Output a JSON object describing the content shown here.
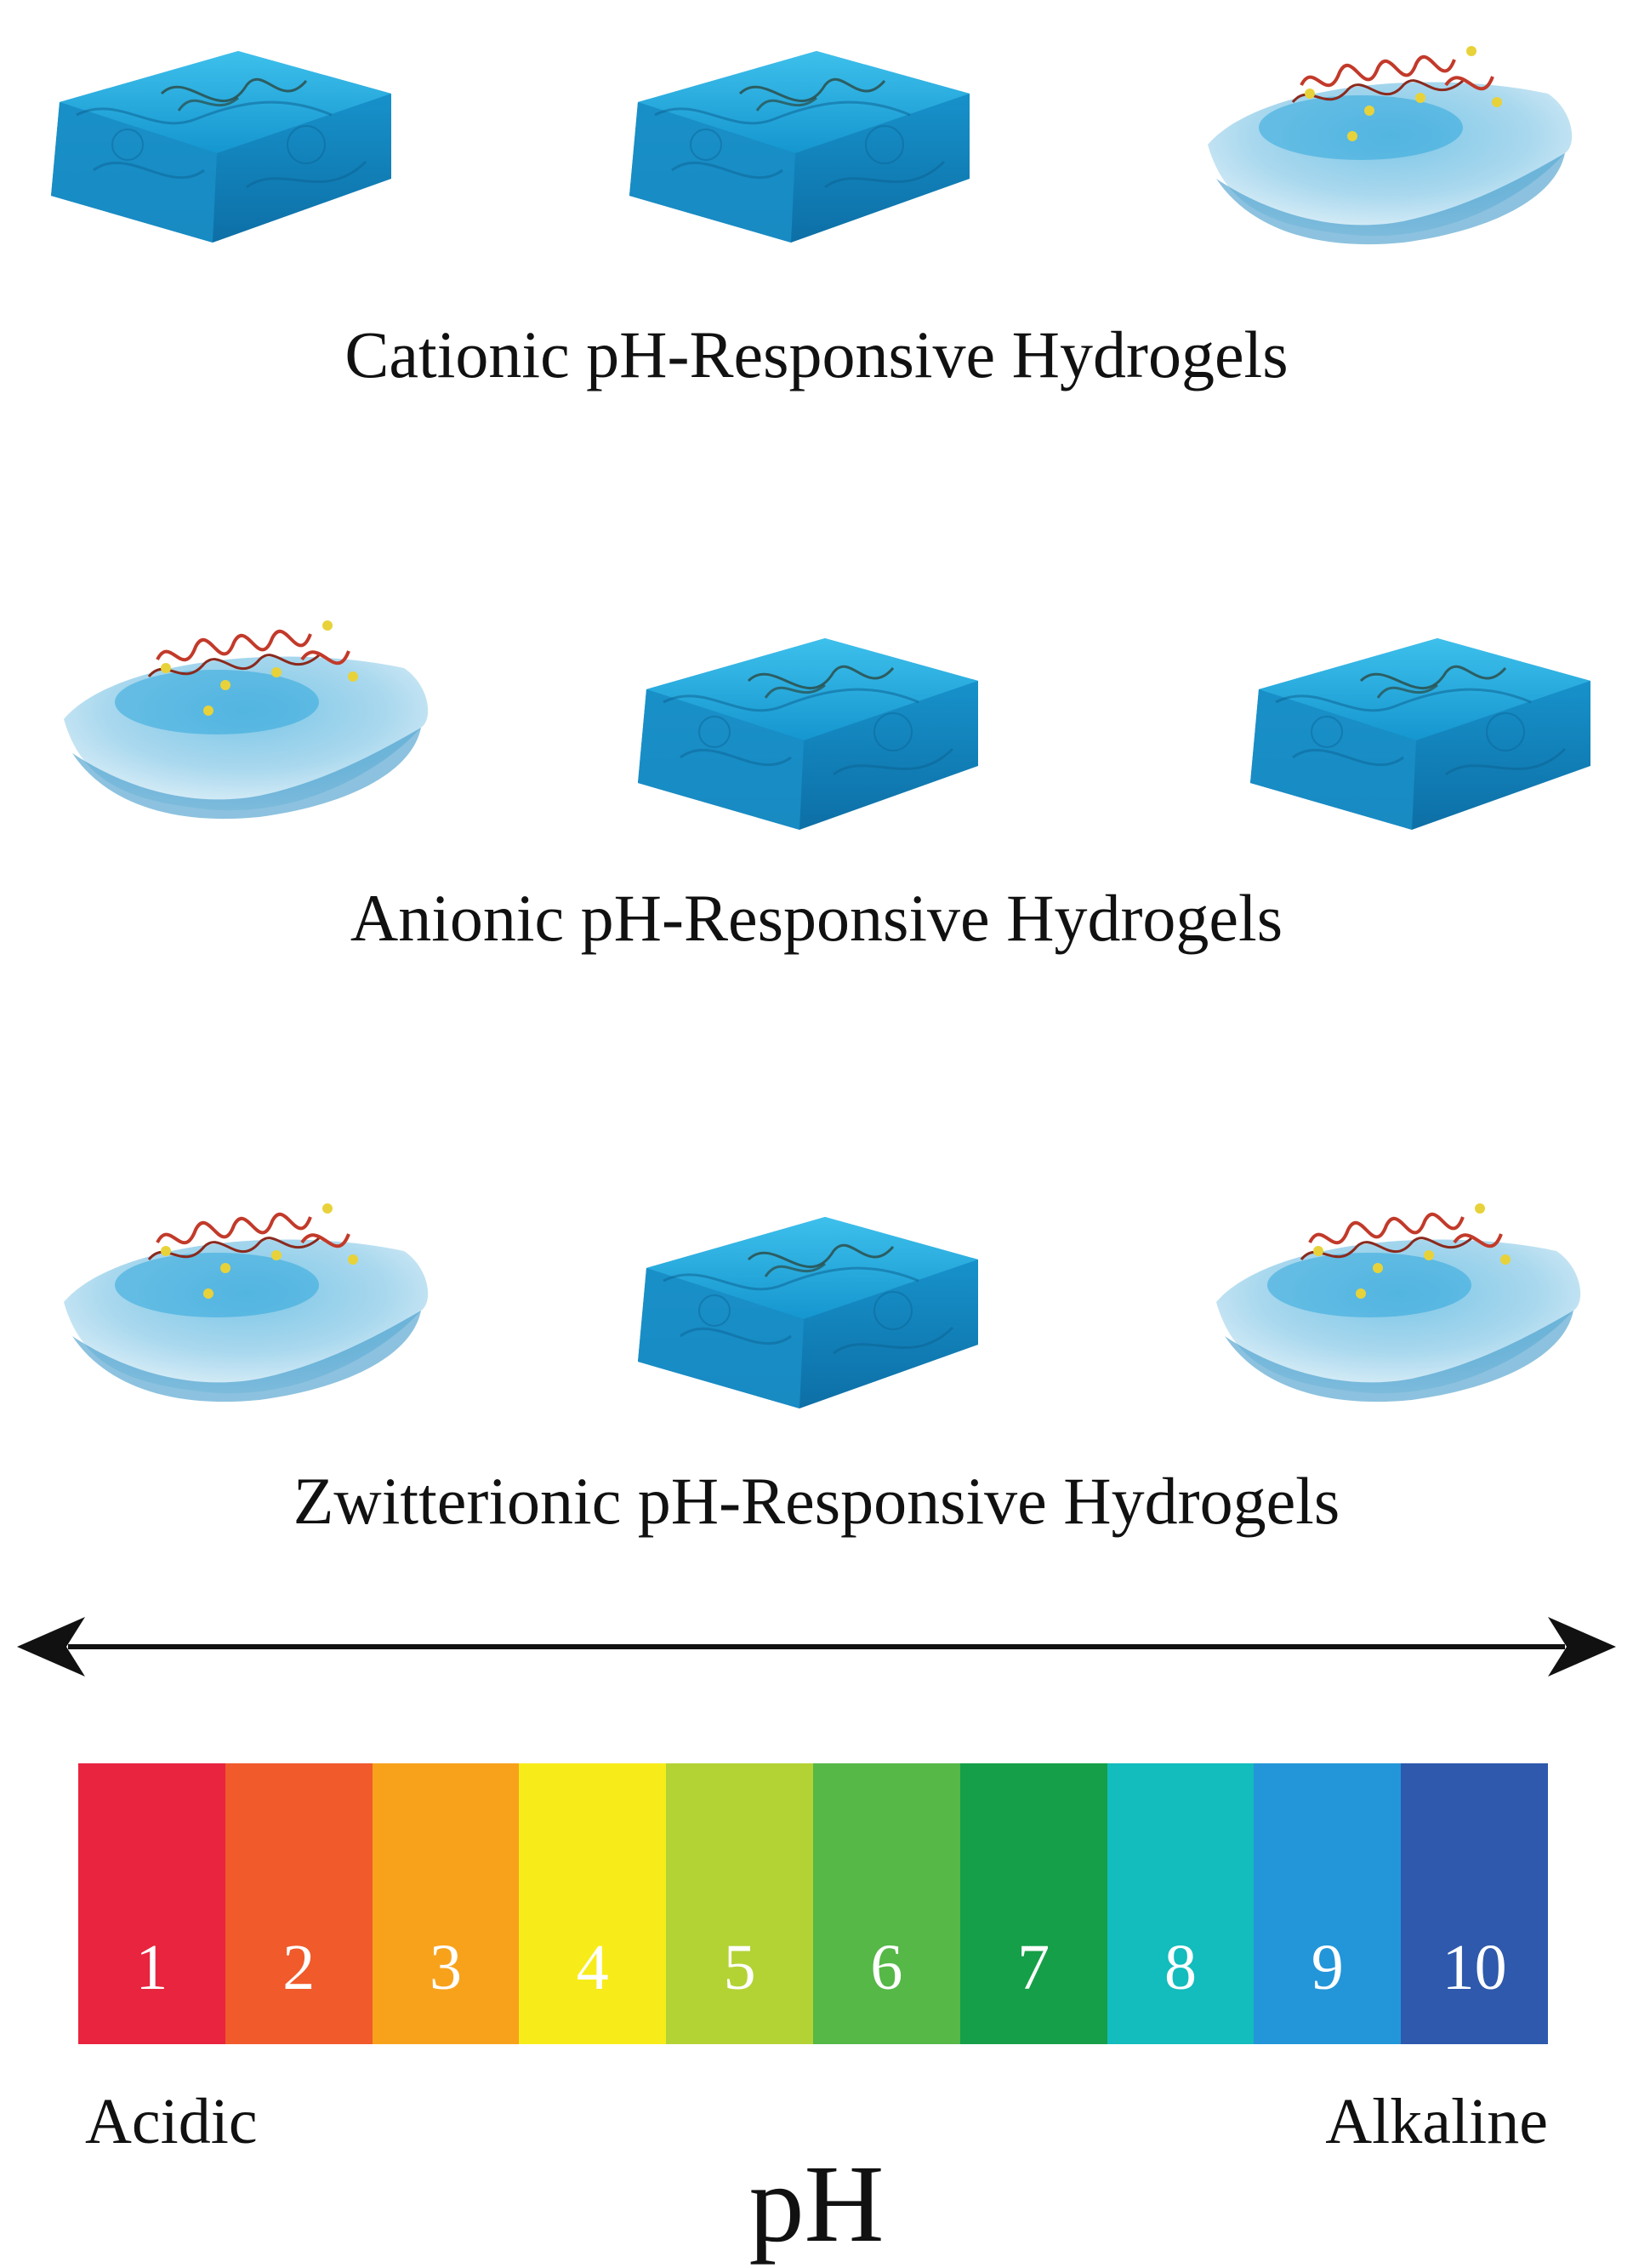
{
  "rows": [
    {
      "label": "Cationic pH-Responsive Hydrogels",
      "states": [
        "swollen",
        "swollen",
        "collapsed"
      ]
    },
    {
      "label": "Anionic pH-Responsive Hydrogels",
      "states": [
        "collapsed",
        "swollen",
        "swollen"
      ]
    },
    {
      "label": "Zwitterionic pH-Responsive Hydrogels",
      "states": [
        "collapsed",
        "swollen",
        "collapsed"
      ]
    }
  ],
  "scale": {
    "cells": [
      {
        "value": "1",
        "color": "#e8243f"
      },
      {
        "value": "2",
        "color": "#f15a2b"
      },
      {
        "value": "3",
        "color": "#f8a21c"
      },
      {
        "value": "4",
        "color": "#f7ec1a"
      },
      {
        "value": "5",
        "color": "#b3d335"
      },
      {
        "value": "6",
        "color": "#55b847"
      },
      {
        "value": "7",
        "color": "#159f48"
      },
      {
        "value": "8",
        "color": "#13bcbd"
      },
      {
        "value": "9",
        "color": "#2296d9"
      },
      {
        "value": "10",
        "color": "#2e59ad"
      }
    ],
    "left_label": "Acidic",
    "right_label": "Alkaline",
    "title": "pH"
  },
  "colors": {
    "gel": "#1ea7d8",
    "gel_dark": "#0e7fb2",
    "gel_light": "#cfe9f5",
    "chain": "#c23a2a"
  }
}
